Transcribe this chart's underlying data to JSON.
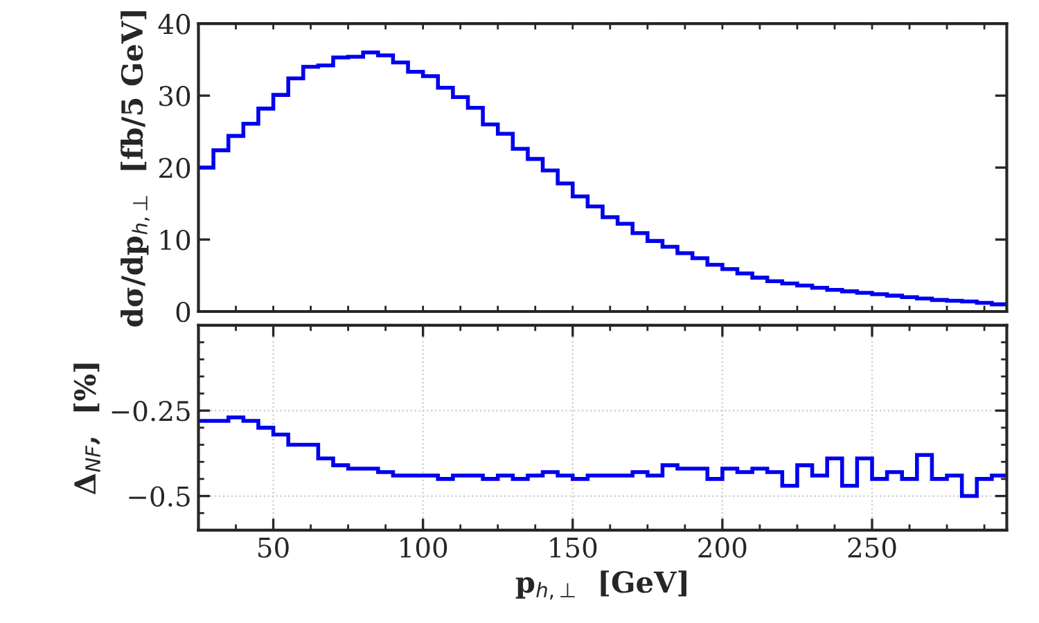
{
  "chart_data": [
    {
      "type": "histogram",
      "ylabel": "dσ/dp$_{h,⊥}$  [fb/5 GeV]",
      "color": "#0000ee",
      "bins": [
        25,
        30,
        35,
        40,
        45,
        50,
        55,
        60,
        65,
        70,
        75,
        80,
        85,
        90,
        95,
        100,
        105,
        110,
        115,
        120,
        125,
        130,
        135,
        140,
        145,
        150,
        155,
        160,
        165,
        170,
        175,
        180,
        185,
        190,
        195,
        200,
        205,
        210,
        215,
        220,
        225,
        230,
        235,
        240,
        245,
        250,
        255,
        260,
        265,
        270,
        275,
        280,
        285,
        290,
        295
      ],
      "values": [
        20.0,
        22.4,
        24.4,
        26.1,
        28.2,
        30.1,
        32.4,
        34.0,
        34.2,
        35.3,
        35.4,
        36.0,
        35.6,
        34.6,
        33.3,
        32.7,
        31.1,
        29.8,
        28.3,
        26.0,
        24.7,
        22.6,
        21.2,
        19.6,
        17.8,
        16.0,
        14.6,
        13.1,
        12.2,
        10.9,
        9.8,
        9.0,
        8.1,
        7.4,
        6.5,
        5.9,
        5.3,
        4.7,
        4.2,
        3.9,
        3.6,
        3.3,
        3.0,
        2.8,
        2.6,
        2.4,
        2.2,
        2.0,
        1.8,
        1.6,
        1.5,
        1.4,
        1.2,
        1.0
      ],
      "xlim": [
        25,
        295
      ],
      "xticks": [
        {
          "value": 37.5,
          "label": null
        },
        {
          "value": 50,
          "label": null
        },
        {
          "value": 62.5,
          "label": null
        },
        {
          "value": 75,
          "label": null
        },
        {
          "value": 87.5,
          "label": null
        },
        {
          "value": 100,
          "label": null
        },
        {
          "value": 112.5,
          "label": null
        },
        {
          "value": 125,
          "label": null
        },
        {
          "value": 137.5,
          "label": null
        },
        {
          "value": 150,
          "label": null
        },
        {
          "value": 162.5,
          "label": null
        },
        {
          "value": 175,
          "label": null
        },
        {
          "value": 187.5,
          "label": null
        },
        {
          "value": 200,
          "label": null
        },
        {
          "value": 212.5,
          "label": null
        },
        {
          "value": 225,
          "label": null
        },
        {
          "value": 237.5,
          "label": null
        },
        {
          "value": 250,
          "label": null
        },
        {
          "value": 262.5,
          "label": null
        },
        {
          "value": 275,
          "label": null
        },
        {
          "value": 287.5,
          "label": null
        }
      ],
      "ylim": [
        0,
        40
      ],
      "yticks": [
        0,
        10,
        20,
        30,
        40
      ],
      "tick_labels": "y"
    },
    {
      "type": "histogram",
      "xlabel": "p$_{h,⊥}$  [GeV]",
      "ylabel": "Δ$_{NF}$,  [%]",
      "color": "#0000ee",
      "bins": [
        25,
        30,
        35,
        40,
        45,
        50,
        55,
        60,
        65,
        70,
        75,
        80,
        85,
        90,
        95,
        100,
        105,
        110,
        115,
        120,
        125,
        130,
        135,
        140,
        145,
        150,
        155,
        160,
        165,
        170,
        175,
        180,
        185,
        190,
        195,
        200,
        205,
        210,
        215,
        220,
        225,
        230,
        235,
        240,
        245,
        250,
        255,
        260,
        265,
        270,
        275,
        280,
        285,
        290,
        295
      ],
      "values": [
        -0.28,
        -0.28,
        -0.27,
        -0.28,
        -0.3,
        -0.32,
        -0.35,
        -0.35,
        -0.39,
        -0.41,
        -0.42,
        -0.42,
        -0.43,
        -0.44,
        -0.44,
        -0.44,
        -0.45,
        -0.44,
        -0.44,
        -0.45,
        -0.44,
        -0.45,
        -0.44,
        -0.43,
        -0.44,
        -0.45,
        -0.44,
        -0.44,
        -0.44,
        -0.43,
        -0.44,
        -0.41,
        -0.42,
        -0.42,
        -0.45,
        -0.42,
        -0.43,
        -0.42,
        -0.43,
        -0.47,
        -0.41,
        -0.44,
        -0.39,
        -0.47,
        -0.39,
        -0.45,
        -0.43,
        -0.45,
        -0.38,
        -0.45,
        -0.44,
        -0.5,
        -0.45,
        -0.44
      ],
      "xlim": [
        25,
        295
      ],
      "xticks": [
        {
          "value": 37.5,
          "label": null
        },
        50,
        {
          "value": 62.5,
          "label": null
        },
        {
          "value": 75,
          "label": null
        },
        {
          "value": 87.5,
          "label": null
        },
        100,
        {
          "value": 112.5,
          "label": null
        },
        {
          "value": 125,
          "label": null
        },
        {
          "value": 137.5,
          "label": null
        },
        150,
        {
          "value": 162.5,
          "label": null
        },
        {
          "value": 175,
          "label": null
        },
        {
          "value": 187.5,
          "label": null
        },
        200,
        {
          "value": 212.5,
          "label": null
        },
        {
          "value": 225,
          "label": null
        },
        {
          "value": 237.5,
          "label": null
        },
        250,
        {
          "value": 262.5,
          "label": null
        },
        {
          "value": 275,
          "label": null
        },
        {
          "value": 287.5,
          "label": null
        }
      ],
      "ylim": [
        -0.6,
        0
      ],
      "yticks": [
        {
          "value": -0.55,
          "label": null
        },
        {
          "value": -0.5,
          "label": "−0.5"
        },
        {
          "value": -0.45,
          "label": null
        },
        {
          "value": -0.4,
          "label": null
        },
        {
          "value": -0.35,
          "label": null
        },
        {
          "value": -0.3,
          "label": null
        },
        {
          "value": -0.25,
          "label": "−0.25"
        },
        {
          "value": -0.2,
          "label": null
        },
        {
          "value": -0.15,
          "label": null
        },
        {
          "value": -0.1,
          "label": null
        },
        {
          "value": -0.05,
          "label": null
        }
      ],
      "grid": true
    }
  ]
}
